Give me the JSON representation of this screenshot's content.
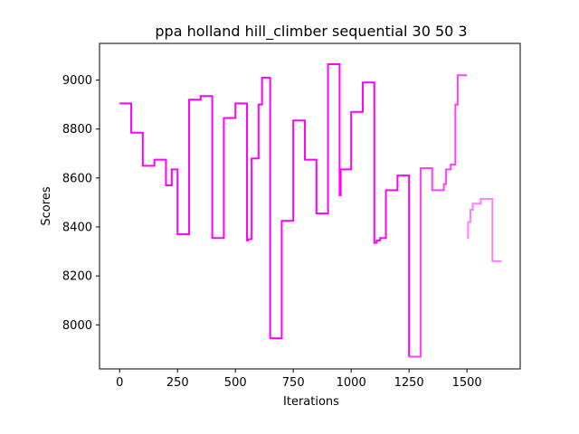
{
  "chart_data": {
    "type": "line",
    "title": "ppa holland hill_climber sequential 30 50 3",
    "xlabel": "Iterations",
    "ylabel": "Scores",
    "xlim": [
      -87,
      1730
    ],
    "ylim": [
      7820,
      9150
    ],
    "xticks": [
      0,
      250,
      500,
      750,
      1000,
      1250,
      1500
    ],
    "yticks": [
      8000,
      8200,
      8400,
      8600,
      8800,
      9000
    ],
    "grid": false,
    "legend": "none",
    "step": true,
    "series": [
      {
        "color": "#ff00ff",
        "opacity": 1.0,
        "points": [
          [
            0,
            8905
          ],
          [
            50,
            8785
          ],
          [
            100,
            8650
          ],
          [
            150,
            8675
          ],
          [
            200,
            8570
          ],
          [
            225,
            8635
          ],
          [
            250,
            8370
          ],
          [
            300,
            8920
          ],
          [
            350,
            8935
          ],
          [
            400,
            8355
          ],
          [
            450,
            8845
          ],
          [
            500,
            8905
          ],
          [
            550,
            8345
          ],
          [
            555,
            8350
          ],
          [
            570,
            8680
          ],
          [
            600,
            8900
          ],
          [
            615,
            9010
          ],
          [
            650,
            7945
          ],
          [
            700,
            8425
          ],
          [
            750,
            8835
          ],
          [
            800,
            8675
          ],
          [
            850,
            8455
          ],
          [
            900,
            9065
          ],
          [
            950,
            8530
          ],
          [
            955,
            8635
          ],
          [
            1000,
            8870
          ],
          [
            1050,
            8990
          ],
          [
            1100,
            8335
          ],
          [
            1110,
            8345
          ],
          [
            1125,
            8355
          ],
          [
            1150,
            8550
          ],
          [
            1200,
            8610
          ],
          [
            1250,
            7870
          ]
        ]
      },
      {
        "color": "#ff00ff",
        "opacity": 0.75,
        "points": [
          [
            1250,
            7870
          ],
          [
            1300,
            8640
          ],
          [
            1350,
            8550
          ],
          [
            1400,
            8575
          ],
          [
            1410,
            8635
          ],
          [
            1430,
            8655
          ],
          [
            1450,
            8900
          ],
          [
            1460,
            9020
          ],
          [
            1500,
            9020
          ]
        ]
      },
      {
        "color": "#ff00ff",
        "opacity": 0.5,
        "points": [
          [
            1500,
            8355
          ],
          [
            1505,
            8420
          ],
          [
            1515,
            8470
          ],
          [
            1525,
            8495
          ],
          [
            1550,
            8495
          ],
          [
            1560,
            8515
          ],
          [
            1600,
            8515
          ],
          [
            1610,
            8260
          ],
          [
            1650,
            8260
          ]
        ]
      }
    ]
  }
}
